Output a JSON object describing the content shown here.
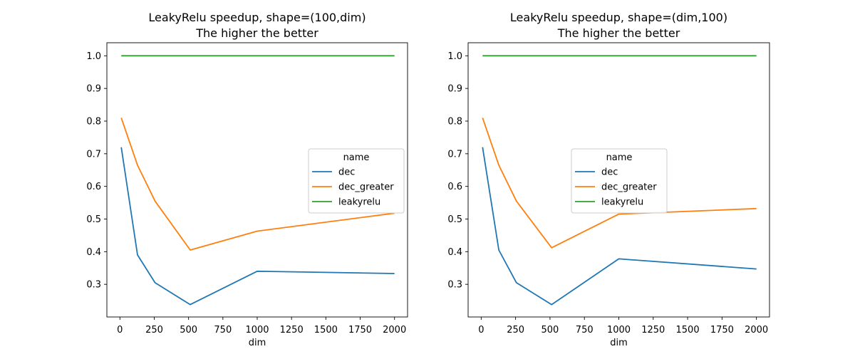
{
  "chart_data": [
    {
      "type": "line",
      "title": "LeakyRelu speedup, shape=(100,dim)\nThe higher the better",
      "xlabel": "dim",
      "ylabel": "",
      "xlim": [
        -95,
        2095
      ],
      "ylim": [
        0.2,
        1.04
      ],
      "xticks": [
        0,
        250,
        500,
        750,
        1000,
        1250,
        1500,
        1750,
        2000
      ],
      "yticks": [
        0.3,
        0.4,
        0.5,
        0.6,
        0.7,
        0.8,
        0.9,
        1.0
      ],
      "xtick_labels": [
        "0",
        "250",
        "500",
        "750",
        "1000",
        "1250",
        "1500",
        "1750",
        "2000"
      ],
      "ytick_labels": [
        "0.3",
        "0.4",
        "0.5",
        "0.6",
        "0.7",
        "0.8",
        "0.9",
        "1.0"
      ],
      "grid": false,
      "legend": {
        "title": "name",
        "position": "center-right"
      },
      "series": [
        {
          "name": "dec",
          "color": "#1f77b4",
          "x": [
            10,
            128,
            256,
            512,
            1000,
            2000
          ],
          "y": [
            0.72,
            0.39,
            0.305,
            0.238,
            0.34,
            0.333
          ]
        },
        {
          "name": "dec_greater",
          "color": "#ff7f0e",
          "x": [
            10,
            128,
            256,
            512,
            1000,
            2000
          ],
          "y": [
            0.81,
            0.665,
            0.555,
            0.405,
            0.463,
            0.518
          ]
        },
        {
          "name": "leakyrelu",
          "color": "#2ca02c",
          "x": [
            10,
            128,
            256,
            512,
            1000,
            2000
          ],
          "y": [
            1.0,
            1.0,
            1.0,
            1.0,
            1.0,
            1.0
          ]
        }
      ]
    },
    {
      "type": "line",
      "title": "LeakyRelu speedup, shape=(dim,100)\nThe higher the better",
      "xlabel": "dim",
      "ylabel": "",
      "xlim": [
        -95,
        2095
      ],
      "ylim": [
        0.2,
        1.04
      ],
      "xticks": [
        0,
        250,
        500,
        750,
        1000,
        1250,
        1500,
        1750,
        2000
      ],
      "yticks": [
        0.3,
        0.4,
        0.5,
        0.6,
        0.7,
        0.8,
        0.9,
        1.0
      ],
      "xtick_labels": [
        "0",
        "250",
        "500",
        "750",
        "1000",
        "1250",
        "1500",
        "1750",
        "2000"
      ],
      "ytick_labels": [
        "0.3",
        "0.4",
        "0.5",
        "0.6",
        "0.7",
        "0.8",
        "0.9",
        "1.0"
      ],
      "grid": false,
      "legend": {
        "title": "name",
        "position": "center"
      },
      "series": [
        {
          "name": "dec",
          "color": "#1f77b4",
          "x": [
            10,
            128,
            256,
            512,
            1000,
            2000
          ],
          "y": [
            0.72,
            0.405,
            0.305,
            0.238,
            0.378,
            0.347
          ]
        },
        {
          "name": "dec_greater",
          "color": "#ff7f0e",
          "x": [
            10,
            128,
            256,
            512,
            1000,
            2000
          ],
          "y": [
            0.81,
            0.665,
            0.555,
            0.412,
            0.515,
            0.532
          ]
        },
        {
          "name": "leakyrelu",
          "color": "#2ca02c",
          "x": [
            10,
            128,
            256,
            512,
            1000,
            2000
          ],
          "y": [
            1.0,
            1.0,
            1.0,
            1.0,
            1.0,
            1.0
          ]
        }
      ]
    }
  ]
}
